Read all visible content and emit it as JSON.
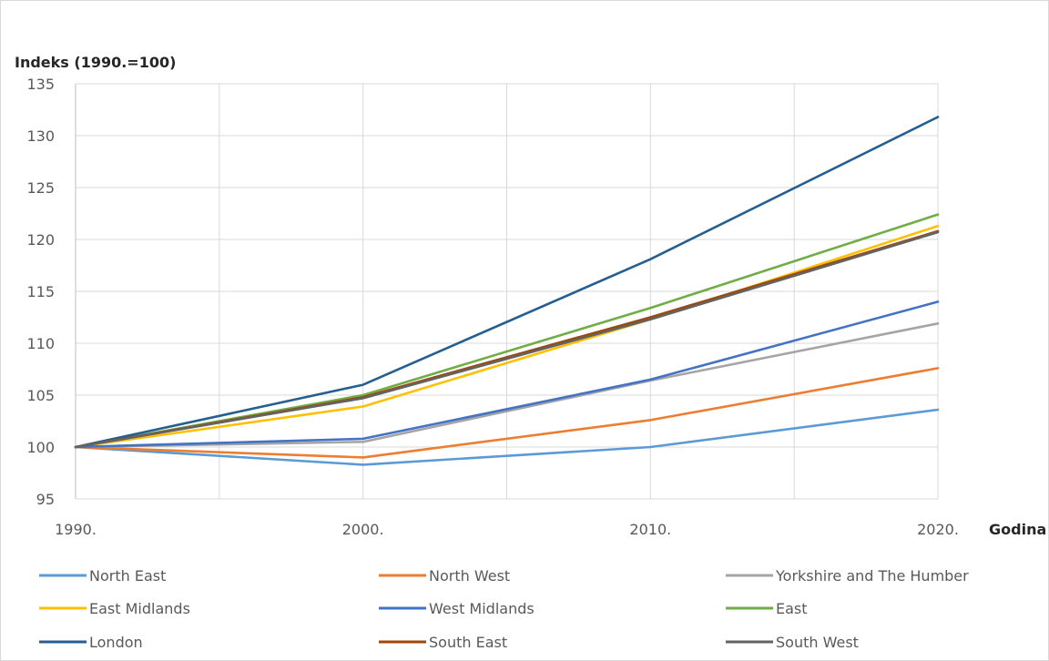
{
  "chart_data": {
    "type": "line",
    "ylabel": "Indeks (1990.=100)",
    "xlabel": "Godina",
    "x": [
      "1990.",
      "2000.",
      "2010.",
      "2020."
    ],
    "ylim": [
      95,
      135
    ],
    "yticks": [
      95,
      100,
      105,
      110,
      115,
      120,
      125,
      130,
      135
    ],
    "grid": true,
    "legend": "bottom",
    "series": [
      {
        "name": "North East",
        "color": "#5B9BD5",
        "values": [
          100,
          98.3,
          100.0,
          103.6
        ]
      },
      {
        "name": "North West",
        "color": "#ED7D31",
        "values": [
          100,
          99.0,
          102.6,
          107.6
        ]
      },
      {
        "name": "Yorkshire and The Humber",
        "color": "#A5A5A5",
        "values": [
          100,
          100.5,
          106.4,
          111.9
        ]
      },
      {
        "name": "East Midlands",
        "color": "#FFC000",
        "values": [
          100,
          103.9,
          112.3,
          121.3
        ]
      },
      {
        "name": "West Midlands",
        "color": "#4472C4",
        "values": [
          100,
          100.8,
          106.5,
          114.0
        ]
      },
      {
        "name": "East",
        "color": "#70AD47",
        "values": [
          100,
          105.0,
          113.4,
          122.4
        ]
      },
      {
        "name": "London",
        "color": "#255E91",
        "values": [
          100,
          106.0,
          118.1,
          131.8
        ]
      },
      {
        "name": "South East",
        "color": "#9E480E",
        "values": [
          100,
          104.8,
          112.5,
          120.8
        ]
      },
      {
        "name": "South West",
        "color": "#636363",
        "values": [
          100,
          104.7,
          112.3,
          120.7
        ]
      }
    ]
  }
}
